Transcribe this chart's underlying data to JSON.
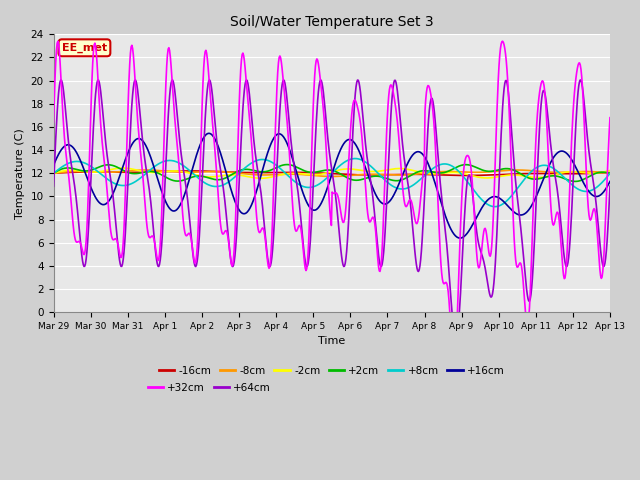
{
  "title": "Soil/Water Temperature Set 3",
  "xlabel": "Time",
  "ylabel": "Temperature (C)",
  "ylim": [
    0,
    24
  ],
  "yticks": [
    0,
    2,
    4,
    6,
    8,
    10,
    12,
    14,
    16,
    18,
    20,
    22,
    24
  ],
  "x_labels": [
    "Mar 29",
    "Mar 30",
    "Mar 31",
    "Apr 1",
    "Apr 2",
    "Apr 3",
    "Apr 4",
    "Apr 5",
    "Apr 6",
    "Apr 7",
    "Apr 8",
    "Apr 9",
    "Apr 10",
    "Apr 11",
    "Apr 12",
    "Apr 13"
  ],
  "annotation_text": "EE_met",
  "annotation_bg": "#ffffcc",
  "annotation_border": "#cc0000",
  "fig_bg": "#d0d0d0",
  "plot_bg": "#e8e8e8",
  "legend": [
    {
      "label": "-16cm",
      "color": "#cc0000"
    },
    {
      "label": "-8cm",
      "color": "#ff9900"
    },
    {
      "label": "-2cm",
      "color": "#ffff00"
    },
    {
      "label": "+2cm",
      "color": "#00bb00"
    },
    {
      "label": "+8cm",
      "color": "#00cccc"
    },
    {
      "label": "+16cm",
      "color": "#000099"
    },
    {
      "label": "+32cm",
      "color": "#ff00ff"
    },
    {
      "label": "+64cm",
      "color": "#9900cc"
    }
  ],
  "series_colors": {
    "-16cm": "#cc0000",
    "-8cm": "#ff9900",
    "-2cm": "#ffff00",
    "+2cm": "#00bb00",
    "+8cm": "#00cccc",
    "+16cm": "#000099",
    "+32cm": "#ff00ff",
    "+64cm": "#9900cc"
  }
}
